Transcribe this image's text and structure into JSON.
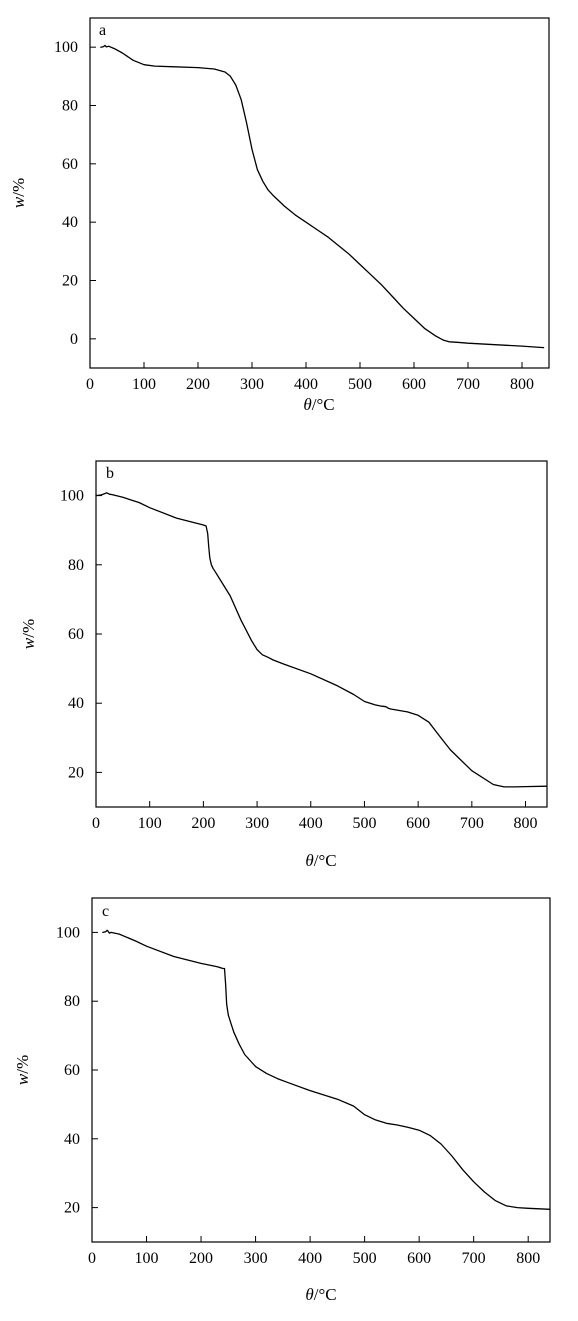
{
  "chart_data": [
    {
      "type": "line",
      "panel_label": "a",
      "xlabel_symbol": "θ",
      "xlabel_unit": "/°C",
      "ylabel_symbol": "w",
      "ylabel_unit": "/%",
      "xlim": [
        0,
        850
      ],
      "ylim": [
        -10,
        110
      ],
      "xticks": [
        0,
        100,
        200,
        300,
        400,
        500,
        600,
        700,
        800
      ],
      "yticks": [
        0,
        20,
        40,
        60,
        80,
        100
      ],
      "grid": false,
      "series": [
        {
          "x": [
            20,
            25,
            28,
            30,
            35,
            45,
            60,
            80,
            100,
            120,
            150,
            200,
            230,
            250,
            260,
            270,
            280,
            290,
            300,
            310,
            320,
            330,
            340,
            360,
            380,
            400,
            420,
            440,
            460,
            480,
            500,
            520,
            540,
            560,
            580,
            600,
            620,
            640,
            655,
            665,
            680,
            700,
            750,
            800,
            840
          ],
          "y": [
            100,
            100.2,
            100.6,
            100.1,
            100.3,
            99.5,
            98,
            95.5,
            94,
            93.5,
            93.3,
            93,
            92.5,
            91.5,
            90,
            87,
            82,
            74,
            65,
            58,
            54,
            51,
            49,
            45.5,
            42.5,
            40,
            37.5,
            35,
            32,
            29,
            25.5,
            22,
            18.5,
            14.5,
            10.5,
            7,
            3.5,
            1,
            -0.5,
            -1,
            -1.2,
            -1.5,
            -2,
            -2.5,
            -3
          ]
        }
      ]
    },
    {
      "type": "line",
      "panel_label": "b",
      "xlabel_symbol": "θ",
      "xlabel_unit": "/°C",
      "ylabel_symbol": "w",
      "ylabel_unit": "/%",
      "xlim": [
        0,
        840
      ],
      "ylim": [
        10,
        110
      ],
      "xticks": [
        0,
        100,
        200,
        300,
        400,
        500,
        600,
        700,
        800
      ],
      "yticks": [
        20,
        40,
        60,
        80,
        100
      ],
      "grid": false,
      "series": [
        {
          "x": [
            0,
            10,
            15,
            20,
            25,
            30,
            50,
            80,
            100,
            150,
            200,
            205,
            208,
            210,
            212,
            215,
            218,
            222,
            230,
            250,
            270,
            290,
            300,
            310,
            320,
            330,
            350,
            400,
            450,
            480,
            500,
            520,
            530,
            540,
            545,
            550,
            580,
            600,
            620,
            640,
            660,
            700,
            740,
            760,
            780,
            800,
            840
          ],
          "y": [
            100,
            100.2,
            100.5,
            100.8,
            100.4,
            100.3,
            99.5,
            98,
            96.5,
            93.5,
            91.5,
            91.2,
            89,
            85,
            82,
            80,
            79,
            78,
            76,
            71,
            64,
            58,
            55.5,
            54,
            53.3,
            52.5,
            51.3,
            48.5,
            45,
            42.5,
            40.5,
            39.5,
            39.2,
            39,
            38.5,
            38.3,
            37.5,
            36.5,
            34.5,
            30.5,
            26.5,
            20.5,
            16.5,
            15.8,
            15.8,
            15.9,
            16
          ]
        }
      ]
    },
    {
      "type": "line",
      "panel_label": "c",
      "xlabel_symbol": "θ",
      "xlabel_unit": "/°C",
      "ylabel_symbol": "w",
      "ylabel_unit": "/%",
      "xlim": [
        0,
        840
      ],
      "ylim": [
        10,
        110
      ],
      "xticks": [
        0,
        100,
        200,
        300,
        400,
        500,
        600,
        700,
        800
      ],
      "yticks": [
        20,
        40,
        60,
        80,
        100
      ],
      "grid": false,
      "series": [
        {
          "x": [
            20,
            25,
            28,
            30,
            32,
            35,
            50,
            80,
            100,
            150,
            200,
            230,
            240,
            243,
            245,
            247,
            250,
            255,
            260,
            270,
            280,
            300,
            320,
            340,
            360,
            400,
            450,
            480,
            500,
            520,
            540,
            560,
            580,
            600,
            620,
            640,
            660,
            680,
            700,
            720,
            740,
            760,
            780,
            800,
            840
          ],
          "y": [
            100,
            100.2,
            100.6,
            100.2,
            99.8,
            100,
            99.5,
            97.5,
            96,
            93,
            91,
            90,
            89.5,
            89.5,
            85,
            79,
            76,
            73.5,
            71,
            67.5,
            64.5,
            61,
            59,
            57.5,
            56.3,
            54,
            51.5,
            49.5,
            47,
            45.5,
            44.5,
            44,
            43.3,
            42.5,
            41,
            38.5,
            35,
            31,
            27.5,
            24.5,
            22,
            20.5,
            20,
            19.8,
            19.5
          ]
        }
      ]
    }
  ]
}
